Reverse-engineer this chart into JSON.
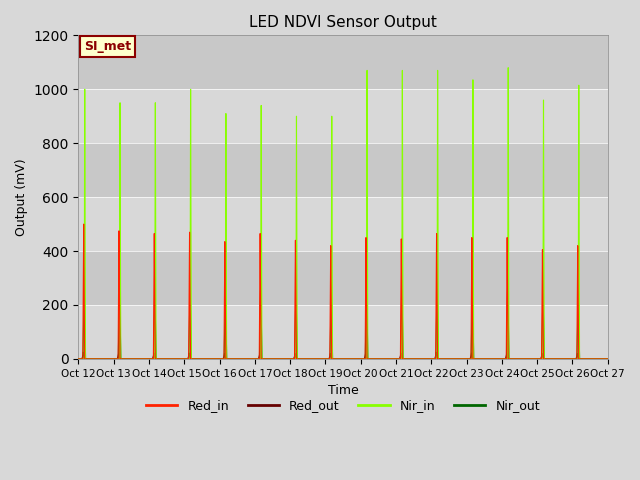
{
  "title": "LED NDVI Sensor Output",
  "xlabel": "Time",
  "ylabel": "Output (mV)",
  "ylim": [
    0,
    1200
  ],
  "background_color": "#d8d8d8",
  "plot_bg_color": "#d0d0d0",
  "annotation_text": "SI_met",
  "annotation_bg": "#ffffcc",
  "annotation_border": "#8b0000",
  "tick_labels": [
    "Oct 12",
    "Oct 13",
    "Oct 14",
    "Oct 15",
    "Oct 16",
    "Oct 17",
    "Oct 18",
    "Oct 19",
    "Oct 20",
    "Oct 21",
    "Oct 22",
    "Oct 23",
    "Oct 24",
    "Oct 25",
    "Oct 26",
    "Oct 27"
  ],
  "red_in_color": "#ff2200",
  "red_out_color": "#660000",
  "nir_in_color": "#88ff00",
  "nir_out_color": "#006600",
  "red_in_peaks": [
    500,
    475,
    465,
    470,
    435,
    465,
    440,
    420,
    450,
    445,
    465,
    450,
    450,
    405,
    420
  ],
  "red_out_peaks": [
    25,
    22,
    22,
    22,
    20,
    20,
    20,
    20,
    22,
    22,
    25,
    22,
    22,
    20,
    20
  ],
  "nir_in_peaks": [
    1000,
    950,
    950,
    1000,
    910,
    940,
    900,
    900,
    1070,
    1070,
    1070,
    1035,
    1080,
    960,
    1015
  ],
  "nir_out_peaks": [
    280,
    275,
    275,
    285,
    270,
    280,
    275,
    270,
    295,
    290,
    290,
    285,
    290,
    260,
    270
  ],
  "grid_colors": [
    "#e8e8e8",
    "#c8c8c8"
  ],
  "num_cycles": 15
}
